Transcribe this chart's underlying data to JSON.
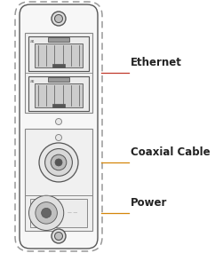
{
  "bg_color": "#ffffff",
  "outline_color": "#555555",
  "line_color": "#888888",
  "fill_body": "#f7f7f7",
  "fill_panel": "#f0f0f0",
  "fill_port": "#e8e8e8",
  "fill_dark": "#555555",
  "red_line_color": "#c0392b",
  "orange_line_color": "#d4860a",
  "label_ethernet": "Ethernet",
  "label_coaxial": "Coaxial Cable",
  "label_power": "Power",
  "label_color": "#222222",
  "label_fontsize": 8.5,
  "label_fontweight": "bold"
}
